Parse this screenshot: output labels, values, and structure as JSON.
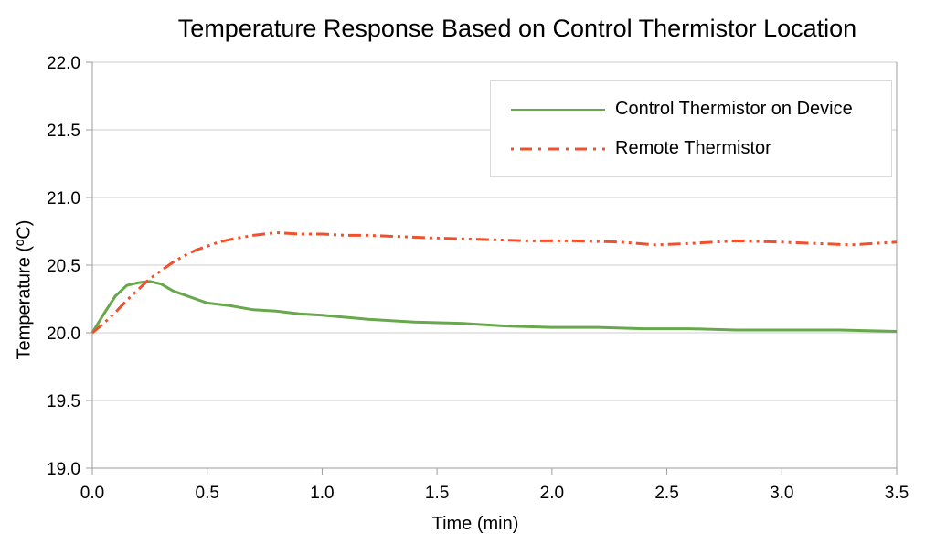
{
  "page": {
    "background": "#ffffff"
  },
  "chart_data": {
    "type": "line",
    "title": "Temperature Response Based on Control Thermistor Location",
    "xlabel": "Time (min)",
    "ylabel": "Temperature (ºC)",
    "xlim": [
      0,
      3.5
    ],
    "ylim": [
      19.0,
      22.0
    ],
    "x_ticks": [
      "0.0",
      "0.5",
      "1.0",
      "1.5",
      "2.0",
      "2.5",
      "3.0",
      "3.5"
    ],
    "y_ticks": [
      "19.0",
      "19.5",
      "20.0",
      "20.5",
      "21.0",
      "21.5",
      "22.0"
    ],
    "grid": "horizontal-only",
    "axis_color": "#9e9e9e",
    "grid_color": "#cdcdcd",
    "text_color": "#000000",
    "legend": {
      "position": "inside-top-right",
      "border_color": "#d9d9d9",
      "background": "#ffffff"
    },
    "series": [
      {
        "name": "Control Thermistor on Device",
        "color": "#67a84c",
        "line_style": "solid",
        "x": [
          0,
          0.05,
          0.1,
          0.15,
          0.2,
          0.25,
          0.3,
          0.35,
          0.4,
          0.45,
          0.5,
          0.6,
          0.7,
          0.8,
          0.9,
          1.0,
          1.2,
          1.4,
          1.6,
          1.8,
          2.0,
          2.2,
          2.4,
          2.6,
          2.8,
          3.0,
          3.25,
          3.5
        ],
        "y": [
          20.0,
          20.14,
          20.27,
          20.35,
          20.37,
          20.38,
          20.36,
          20.31,
          20.28,
          20.25,
          20.22,
          20.2,
          20.17,
          20.16,
          20.14,
          20.13,
          20.1,
          20.08,
          20.07,
          20.05,
          20.04,
          20.04,
          20.03,
          20.03,
          20.02,
          20.02,
          20.02,
          20.01
        ]
      },
      {
        "name": "Remote Thermistor",
        "color": "#f0512c",
        "line_style": "long-dash-dot-dot",
        "x": [
          0,
          0.05,
          0.1,
          0.15,
          0.2,
          0.25,
          0.3,
          0.35,
          0.4,
          0.45,
          0.5,
          0.55,
          0.6,
          0.7,
          0.8,
          0.9,
          1.0,
          1.1,
          1.2,
          1.35,
          1.5,
          1.7,
          1.9,
          2.1,
          2.3,
          2.45,
          2.6,
          2.8,
          3.0,
          3.15,
          3.3,
          3.5
        ],
        "y": [
          20.0,
          20.07,
          20.15,
          20.24,
          20.32,
          20.4,
          20.46,
          20.52,
          20.57,
          20.61,
          20.64,
          20.67,
          20.69,
          20.72,
          20.74,
          20.73,
          20.73,
          20.72,
          20.72,
          20.71,
          20.7,
          20.69,
          20.68,
          20.68,
          20.67,
          20.65,
          20.66,
          20.68,
          20.67,
          20.66,
          20.65,
          20.67
        ]
      }
    ]
  }
}
